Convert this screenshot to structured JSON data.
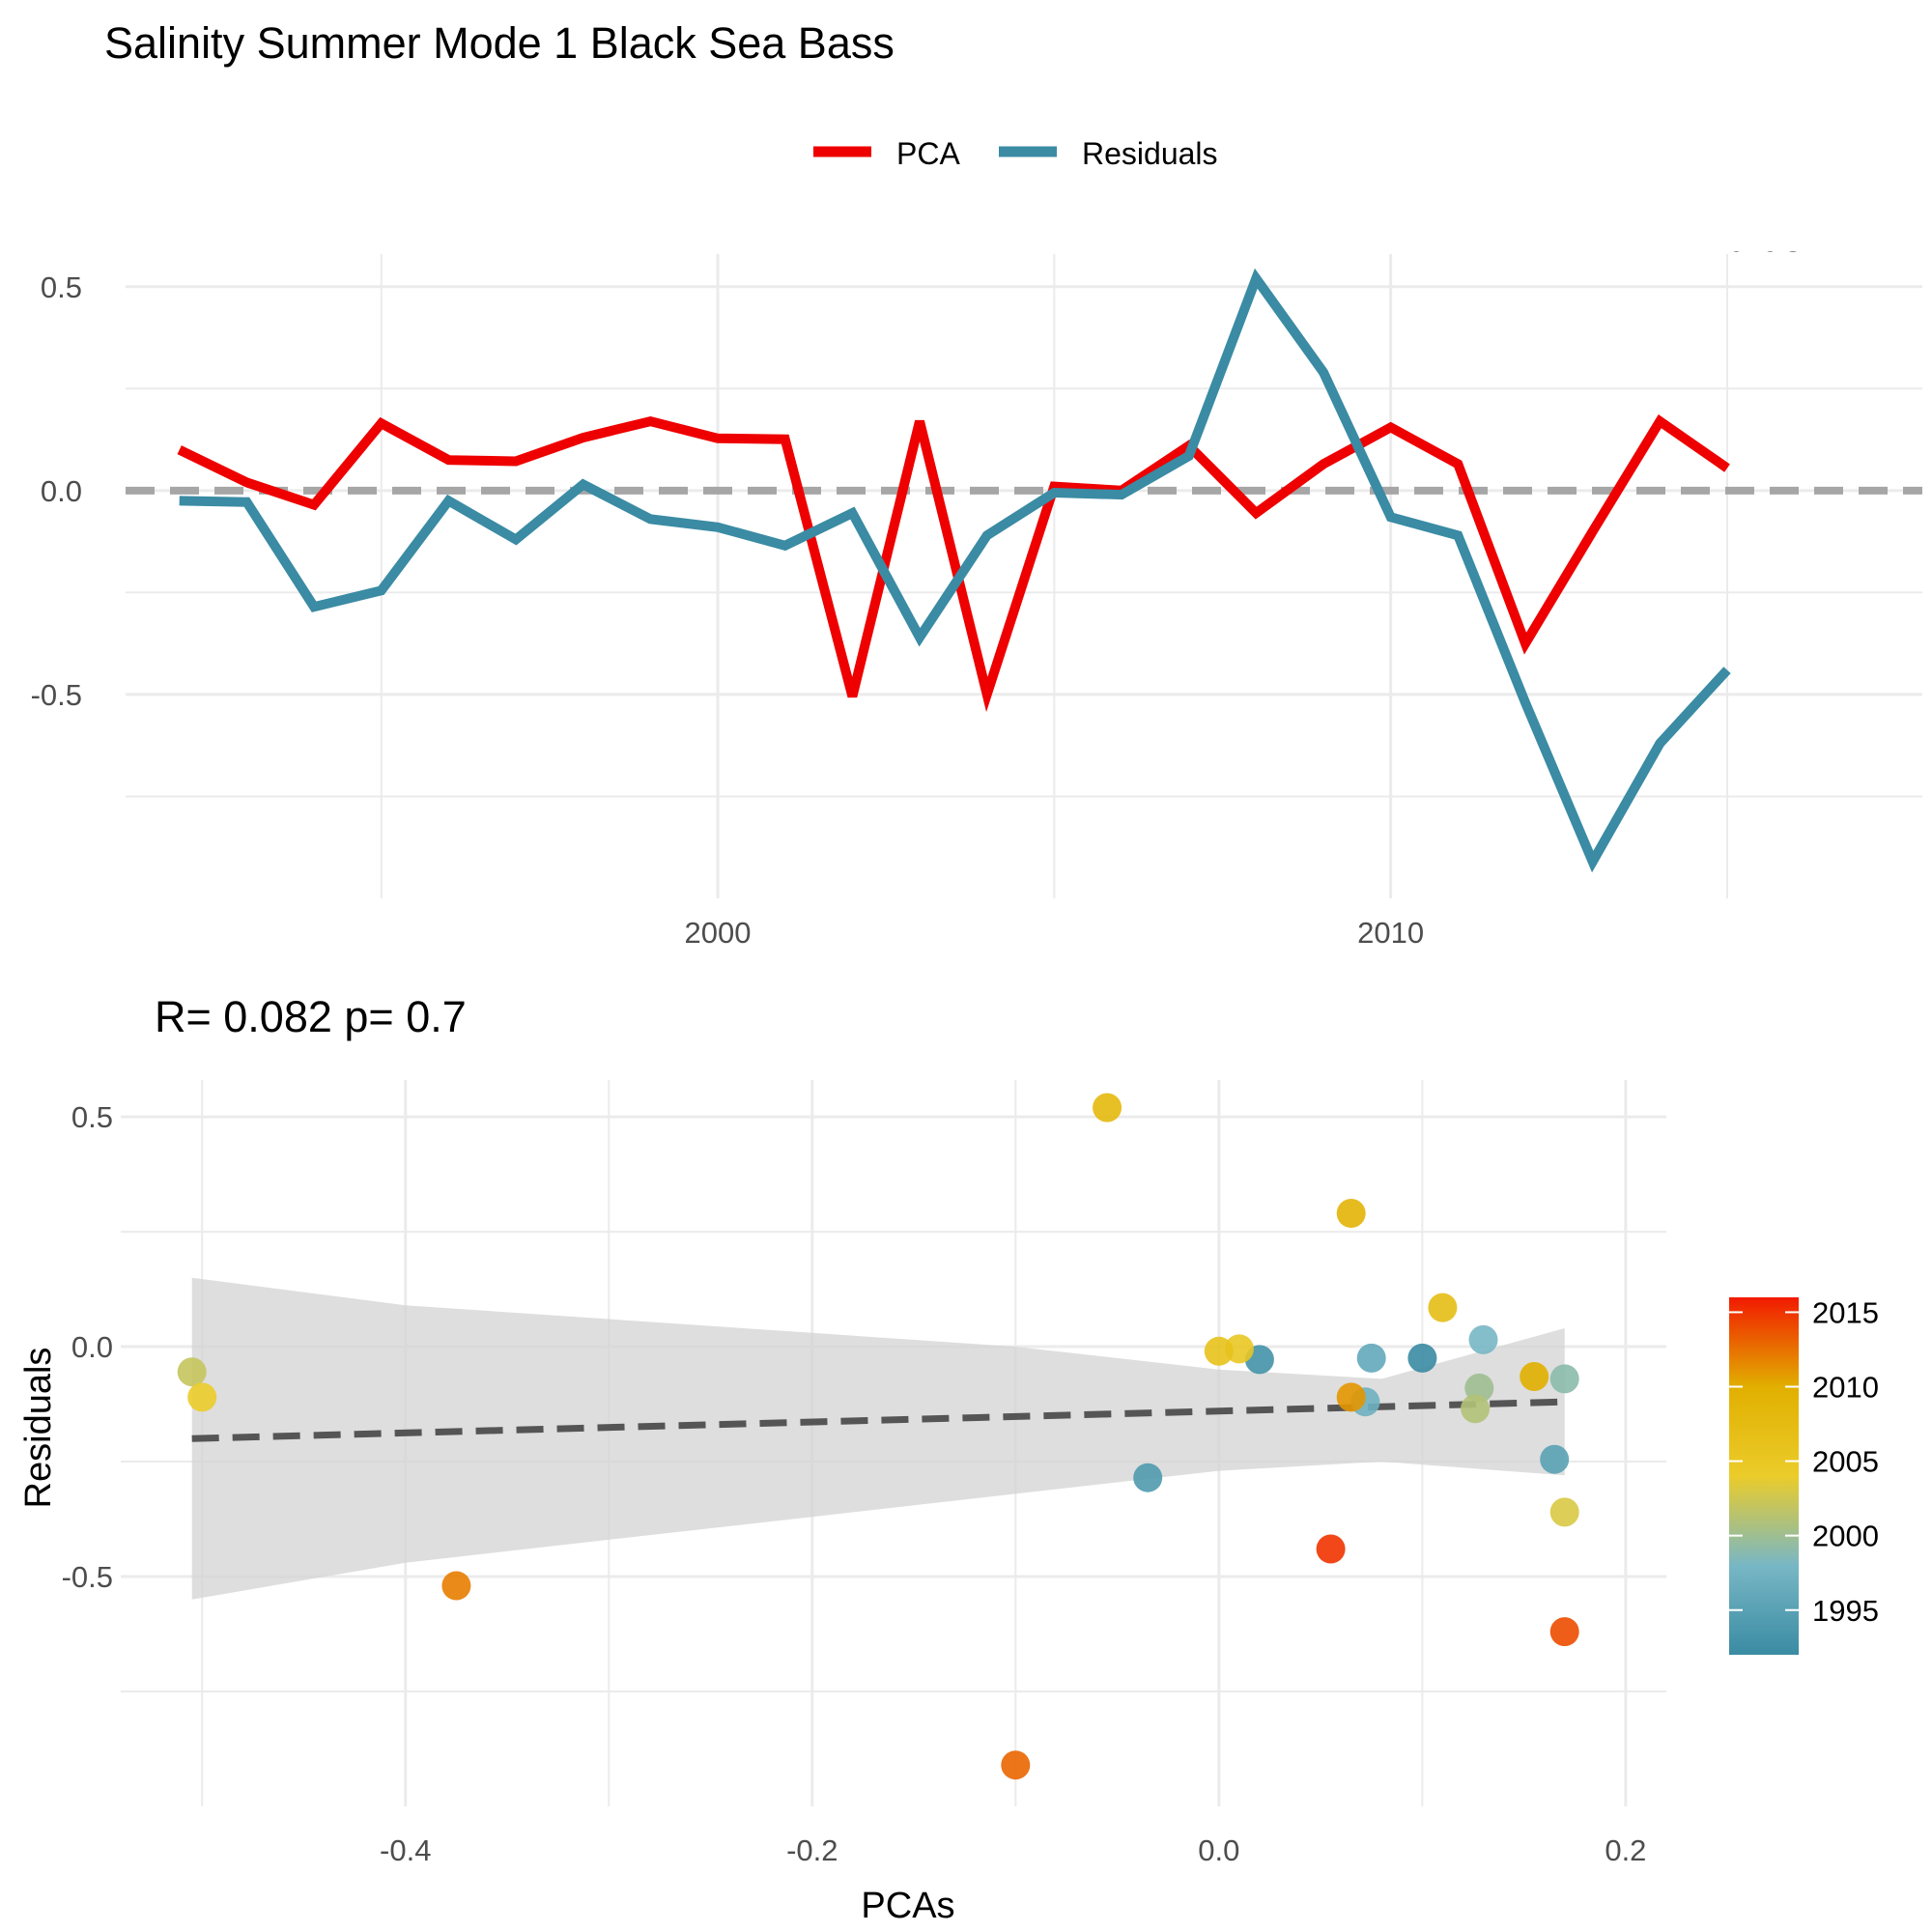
{
  "title": "Salinity Summer Mode 1 Black Sea Bass",
  "legend": [
    {
      "label": "PCA",
      "color": "#EE0000"
    },
    {
      "label": "Residuals",
      "color": "#3A8BA3"
    }
  ],
  "corner_fragment": "r=0.082",
  "stats_label": "R= 0.082  p= 0.7",
  "chart_data": [
    {
      "type": "line",
      "title": "",
      "xlabel": "",
      "ylabel": "",
      "x": [
        1992,
        1993,
        1994,
        1995,
        1996,
        1997,
        1998,
        1999,
        2000,
        2001,
        2002,
        2003,
        2004,
        2005,
        2006,
        2007,
        2008,
        2009,
        2010,
        2011,
        2012,
        2013,
        2014,
        2015,
        2016
      ],
      "series": [
        {
          "name": "PCA",
          "color": "#EE0000",
          "values": [
            0.1,
            0.02,
            -0.035,
            0.165,
            0.075,
            0.072,
            0.13,
            0.17,
            0.128,
            0.126,
            -0.505,
            0.17,
            -0.5,
            0.01,
            0.0,
            0.11,
            -0.055,
            0.065,
            0.155,
            0.065,
            -0.375,
            -0.1,
            0.17,
            0.055,
            null
          ]
        },
        {
          "name": "Residuals",
          "color": "#3A8BA3",
          "values": [
            -0.025,
            -0.028,
            -0.285,
            -0.245,
            -0.025,
            -0.12,
            0.015,
            -0.07,
            -0.09,
            -0.135,
            -0.055,
            -0.36,
            -0.11,
            -0.005,
            -0.01,
            0.085,
            0.52,
            0.29,
            -0.065,
            -0.11,
            -0.52,
            -0.91,
            -0.62,
            -0.44,
            null
          ]
        }
      ],
      "xticks": [
        2000,
        2010
      ],
      "yticks": [
        -0.5,
        0.0,
        0.5
      ],
      "ytick_labels": [
        "-0.5",
        "0.0",
        "0.5"
      ],
      "xlim": [
        1991.2,
        2017.9
      ],
      "ylim": [
        -1.0,
        0.58
      ],
      "reference_line": 0,
      "grid": true
    },
    {
      "type": "scatter",
      "title": "R= 0.082  p= 0.7",
      "xlabel": "PCAs",
      "ylabel": "Residuals",
      "xticks": [
        -0.4,
        -0.2,
        0.0,
        0.2
      ],
      "xtick_labels": [
        "-0.4",
        "-0.2",
        "0.0",
        "0.2"
      ],
      "yticks": [
        -0.5,
        0.0,
        0.5
      ],
      "ytick_labels": [
        "-0.5",
        "0.0",
        "0.5"
      ],
      "xlim": [
        -0.54,
        0.22
      ],
      "ylim": [
        -1.0,
        0.58
      ],
      "grid": true,
      "points": [
        {
          "x": 0.1,
          "y": -0.025,
          "year": 1992
        },
        {
          "x": 0.02,
          "y": -0.028,
          "year": 1993
        },
        {
          "x": -0.035,
          "y": -0.285,
          "year": 1994
        },
        {
          "x": 0.165,
          "y": -0.245,
          "year": 1995
        },
        {
          "x": 0.075,
          "y": -0.025,
          "year": 1996
        },
        {
          "x": 0.072,
          "y": -0.12,
          "year": 1997
        },
        {
          "x": 0.13,
          "y": 0.015,
          "year": 1998
        },
        {
          "x": 0.17,
          "y": -0.07,
          "year": 1999
        },
        {
          "x": 0.128,
          "y": -0.09,
          "year": 2000
        },
        {
          "x": 0.126,
          "y": -0.135,
          "year": 2001
        },
        {
          "x": -0.505,
          "y": -0.055,
          "year": 2002
        },
        {
          "x": 0.17,
          "y": -0.36,
          "year": 2003
        },
        {
          "x": -0.5,
          "y": -0.11,
          "year": 2004
        },
        {
          "x": 0.01,
          "y": -0.005,
          "year": 2005
        },
        {
          "x": 0.0,
          "y": -0.01,
          "year": 2006
        },
        {
          "x": 0.11,
          "y": 0.085,
          "year": 2007
        },
        {
          "x": -0.055,
          "y": 0.52,
          "year": 2008
        },
        {
          "x": 0.065,
          "y": 0.29,
          "year": 2009
        },
        {
          "x": 0.155,
          "y": -0.065,
          "year": 2010
        },
        {
          "x": 0.065,
          "y": -0.11,
          "year": 2011
        },
        {
          "x": -0.375,
          "y": -0.52,
          "year": 2012
        },
        {
          "x": -0.1,
          "y": -0.91,
          "year": 2013
        },
        {
          "x": 0.17,
          "y": -0.62,
          "year": 2014
        },
        {
          "x": 0.055,
          "y": -0.44,
          "year": 2015
        }
      ],
      "fit_line": {
        "x": [
          -0.505,
          0.17
        ],
        "y": [
          -0.2,
          -0.12
        ]
      },
      "confidence_band": {
        "x": [
          -0.505,
          -0.4,
          -0.3,
          -0.2,
          -0.1,
          0.0,
          0.08,
          0.17
        ],
        "upper": [
          0.15,
          0.09,
          0.06,
          0.03,
          0.0,
          -0.05,
          -0.07,
          0.04
        ],
        "lower": [
          -0.55,
          -0.47,
          -0.42,
          -0.37,
          -0.32,
          -0.27,
          -0.25,
          -0.28
        ]
      },
      "colorbar": {
        "ticks": [
          1995,
          2000,
          2005,
          2010,
          2015
        ],
        "range": [
          1992,
          2016
        ],
        "stops": [
          {
            "t": 0.0,
            "color": "#3A8BA3"
          },
          {
            "t": 0.25,
            "color": "#78B7C5"
          },
          {
            "t": 0.5,
            "color": "#EBCC2A"
          },
          {
            "t": 0.75,
            "color": "#E1AF00"
          },
          {
            "t": 1.0,
            "color": "#F21A00"
          }
        ]
      }
    }
  ]
}
